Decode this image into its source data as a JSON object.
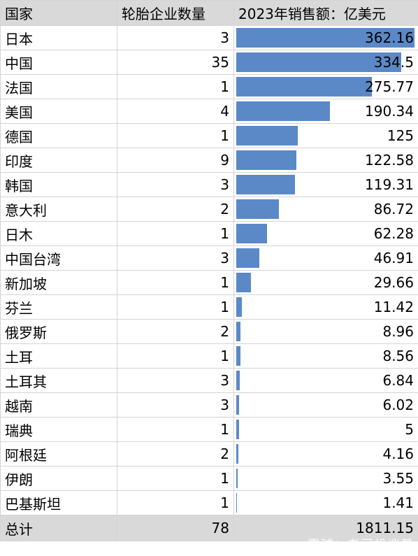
{
  "header": {
    "country": "国家",
    "count": "轮胎企业数量",
    "sales": "2023年销售额：亿美元"
  },
  "rows": [
    {
      "country": "日本",
      "count": "3",
      "sales": "362.16",
      "value": 362.16
    },
    {
      "country": "中国",
      "count": "35",
      "sales": "334.5",
      "value": 334.5
    },
    {
      "country": "法国",
      "count": "1",
      "sales": "275.77",
      "value": 275.77
    },
    {
      "country": "美国",
      "count": "4",
      "sales": "190.34",
      "value": 190.34
    },
    {
      "country": "德国",
      "count": "1",
      "sales": "125",
      "value": 125
    },
    {
      "country": "印度",
      "count": "9",
      "sales": "122.58",
      "value": 122.58
    },
    {
      "country": "韩国",
      "count": "3",
      "sales": "119.31",
      "value": 119.31
    },
    {
      "country": "意大利",
      "count": "2",
      "sales": "86.72",
      "value": 86.72
    },
    {
      "country": "日木",
      "count": "1",
      "sales": "62.28",
      "value": 62.28
    },
    {
      "country": "中国台湾",
      "count": "3",
      "sales": "46.91",
      "value": 46.91
    },
    {
      "country": "新加坡",
      "count": "1",
      "sales": "29.66",
      "value": 29.66
    },
    {
      "country": "芬兰",
      "count": "1",
      "sales": "11.42",
      "value": 11.42
    },
    {
      "country": "俄罗斯",
      "count": "2",
      "sales": "8.96",
      "value": 8.96
    },
    {
      "country": "土耳",
      "count": "1",
      "sales": "8.56",
      "value": 8.56
    },
    {
      "country": "土耳其",
      "count": "3",
      "sales": "6.84",
      "value": 6.84
    },
    {
      "country": "越南",
      "count": "3",
      "sales": "6.02",
      "value": 6.02
    },
    {
      "country": "瑞典",
      "count": "1",
      "sales": "5",
      "value": 5
    },
    {
      "country": "阿根廷",
      "count": "2",
      "sales": "4.16",
      "value": 4.16
    },
    {
      "country": "伊朗",
      "count": "1",
      "sales": "3.55",
      "value": 3.55
    },
    {
      "country": "巴基斯坦",
      "count": "1",
      "sales": "1.41",
      "value": 1.41
    }
  ],
  "total": {
    "label": "总计",
    "count": "78",
    "sales": "1811.15"
  },
  "watermark": "雪球：老司机谈基",
  "bar_max": 362.16,
  "bar_color": "#5b89c8",
  "header_bg": "#d9d9d9"
}
